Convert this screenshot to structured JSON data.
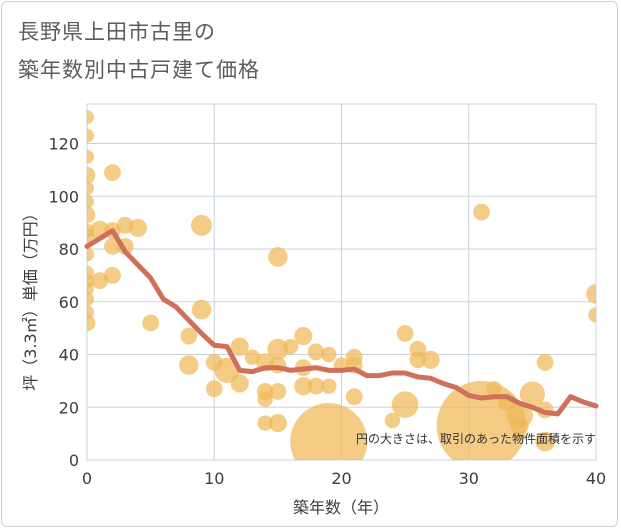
{
  "title_line1": "長野県上田市古里の",
  "title_line2": "築年数別中古戸建て価格",
  "chart_data": {
    "type": "scatter",
    "xlabel": "築年数（年）",
    "ylabel": "坪（3.3㎡）単価（万円）",
    "xlim": [
      0,
      40
    ],
    "ylim": [
      0,
      135
    ],
    "x_ticks": [
      "0",
      "10",
      "20",
      "30",
      "40"
    ],
    "y_ticks": [
      "0",
      "20",
      "40",
      "60",
      "80",
      "100",
      "120"
    ],
    "grid": true,
    "note": "円の大きさは、取引のあった物件面積を示す",
    "bubble_color": "#f0b858",
    "line_color": "#d0705a",
    "bubbles": [
      {
        "x": 0,
        "y": 130,
        "s": 1
      },
      {
        "x": 0,
        "y": 123,
        "s": 1
      },
      {
        "x": 0,
        "y": 115,
        "s": 1
      },
      {
        "x": 0,
        "y": 108,
        "s": 1.2
      },
      {
        "x": 0,
        "y": 103,
        "s": 1
      },
      {
        "x": 0,
        "y": 98,
        "s": 1
      },
      {
        "x": 0,
        "y": 93,
        "s": 1.2
      },
      {
        "x": 0,
        "y": 87,
        "s": 1
      },
      {
        "x": 0,
        "y": 85,
        "s": 1
      },
      {
        "x": 0,
        "y": 78,
        "s": 1
      },
      {
        "x": 0,
        "y": 71,
        "s": 1
      },
      {
        "x": 0,
        "y": 68,
        "s": 1
      },
      {
        "x": 0,
        "y": 65,
        "s": 1
      },
      {
        "x": 0,
        "y": 61,
        "s": 1
      },
      {
        "x": 0,
        "y": 56,
        "s": 1
      },
      {
        "x": 0,
        "y": 52,
        "s": 1.2
      },
      {
        "x": 1,
        "y": 87,
        "s": 1.4
      },
      {
        "x": 1,
        "y": 68,
        "s": 1.2
      },
      {
        "x": 2,
        "y": 109,
        "s": 1.2
      },
      {
        "x": 2,
        "y": 87,
        "s": 1.2
      },
      {
        "x": 2,
        "y": 81,
        "s": 1.2
      },
      {
        "x": 2,
        "y": 70,
        "s": 1.2
      },
      {
        "x": 3,
        "y": 89,
        "s": 1.2
      },
      {
        "x": 3,
        "y": 81,
        "s": 1.2
      },
      {
        "x": 4,
        "y": 88,
        "s": 1.3
      },
      {
        "x": 5,
        "y": 52,
        "s": 1.2
      },
      {
        "x": 8,
        "y": 47,
        "s": 1.2
      },
      {
        "x": 8,
        "y": 36,
        "s": 1.4
      },
      {
        "x": 9,
        "y": 89,
        "s": 1.5
      },
      {
        "x": 9,
        "y": 57,
        "s": 1.4
      },
      {
        "x": 10,
        "y": 37,
        "s": 1.2
      },
      {
        "x": 10,
        "y": 27,
        "s": 1.2
      },
      {
        "x": 11,
        "y": 34,
        "s": 1.8
      },
      {
        "x": 12,
        "y": 43,
        "s": 1.3
      },
      {
        "x": 12,
        "y": 29,
        "s": 1.3
      },
      {
        "x": 13,
        "y": 39,
        "s": 1.1
      },
      {
        "x": 14,
        "y": 37,
        "s": 1.3
      },
      {
        "x": 14,
        "y": 26,
        "s": 1.2
      },
      {
        "x": 14,
        "y": 23,
        "s": 1.1
      },
      {
        "x": 14,
        "y": 14,
        "s": 1.1
      },
      {
        "x": 15,
        "y": 77,
        "s": 1.4
      },
      {
        "x": 15,
        "y": 42,
        "s": 1.5
      },
      {
        "x": 15,
        "y": 36,
        "s": 1.2
      },
      {
        "x": 15,
        "y": 26,
        "s": 1.2
      },
      {
        "x": 15,
        "y": 14,
        "s": 1.3
      },
      {
        "x": 16,
        "y": 43,
        "s": 1.1
      },
      {
        "x": 17,
        "y": 47,
        "s": 1.3
      },
      {
        "x": 17,
        "y": 35,
        "s": 1.2
      },
      {
        "x": 17,
        "y": 28,
        "s": 1.3
      },
      {
        "x": 18,
        "y": 41,
        "s": 1.2
      },
      {
        "x": 18,
        "y": 28,
        "s": 1.2
      },
      {
        "x": 19,
        "y": 7,
        "s": 5.5
      },
      {
        "x": 19,
        "y": 40,
        "s": 1.1
      },
      {
        "x": 19,
        "y": 28,
        "s": 1.1
      },
      {
        "x": 20,
        "y": 36,
        "s": 1.1
      },
      {
        "x": 21,
        "y": 39,
        "s": 1.2
      },
      {
        "x": 21,
        "y": 36,
        "s": 1.2
      },
      {
        "x": 21,
        "y": 24,
        "s": 1.2
      },
      {
        "x": 24,
        "y": 15,
        "s": 1.1
      },
      {
        "x": 25,
        "y": 48,
        "s": 1.2
      },
      {
        "x": 25,
        "y": 21,
        "s": 1.9
      },
      {
        "x": 26,
        "y": 42,
        "s": 1.2
      },
      {
        "x": 26,
        "y": 38,
        "s": 1.2
      },
      {
        "x": 27,
        "y": 38,
        "s": 1.3
      },
      {
        "x": 31,
        "y": 94,
        "s": 1.2
      },
      {
        "x": 31,
        "y": 13,
        "s": 6.4
      },
      {
        "x": 32,
        "y": 27,
        "s": 1.1
      },
      {
        "x": 33,
        "y": 22,
        "s": 1.3
      },
      {
        "x": 34,
        "y": 17,
        "s": 1.9
      },
      {
        "x": 34,
        "y": 13,
        "s": 1.3
      },
      {
        "x": 35,
        "y": 25,
        "s": 1.8
      },
      {
        "x": 36,
        "y": 37,
        "s": 1.2
      },
      {
        "x": 36,
        "y": 19,
        "s": 1.2
      },
      {
        "x": 36,
        "y": 7,
        "s": 1.4
      },
      {
        "x": 40,
        "y": 63,
        "s": 1.4
      },
      {
        "x": 40,
        "y": 55,
        "s": 1.1
      }
    ],
    "line": {
      "x": [
        0,
        1,
        2,
        3,
        4,
        5,
        6,
        7,
        8,
        9,
        10,
        11,
        12,
        13,
        14,
        15,
        16,
        17,
        18,
        19,
        20,
        21,
        22,
        23,
        24,
        25,
        26,
        27,
        28,
        29,
        30,
        31,
        32,
        33,
        34,
        35,
        36,
        37,
        38,
        39,
        40
      ],
      "y": [
        81,
        84,
        87,
        79,
        74,
        69,
        61,
        58,
        53,
        48,
        43.5,
        43,
        34,
        33.5,
        35,
        35,
        34,
        34.5,
        35,
        34,
        34,
        34.5,
        32,
        32,
        33,
        33,
        31.5,
        31,
        29,
        27.5,
        24.5,
        23.5,
        24,
        24,
        21.5,
        20,
        18,
        17.5,
        24,
        22,
        20.5
      ]
    }
  }
}
